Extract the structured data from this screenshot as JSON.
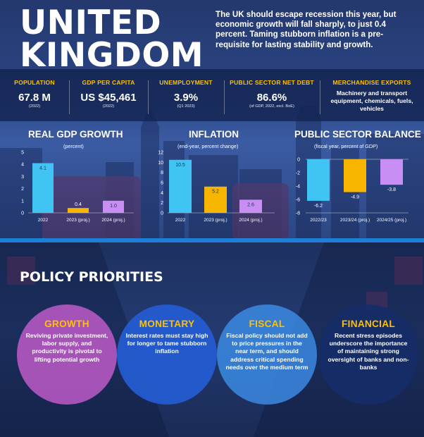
{
  "header": {
    "title_line1": "UNITED",
    "title_line2": "KINGDOM",
    "summary": "The UK should escape recession this year, but economic growth will fall sharply, to just 0.4 percent. Taming stubborn inflation is a pre-requisite for lasting stability and growth."
  },
  "stats": [
    {
      "label": "POPULATION",
      "value": "67.8 M",
      "note": "(2022)"
    },
    {
      "label": "GDP PER CAPITA",
      "value": "US $45,461",
      "note": "(2022)"
    },
    {
      "label": "UNEMPLOYMENT",
      "value": "3.9%",
      "note": "(Q1 2023)"
    },
    {
      "label": "PUBLIC SECTOR NET DEBT",
      "value": "86.6%",
      "note": "(of GDP, 2022, excl. BoE)"
    },
    {
      "label": "MERCHANDISE EXPORTS",
      "text": "Machinery and transport equipment, chemicals, fuels, vehicles"
    }
  ],
  "colors": {
    "accent_yellow": "#ffc000",
    "bar_blue": "#3fc4f4",
    "bar_yellow": "#f8b500",
    "bar_purple": "#c98ef3",
    "divider_blue": "#1e7fd6"
  },
  "chart_data": [
    {
      "type": "bar",
      "title": "REAL GDP GROWTH",
      "subtitle": "(percent)",
      "categories": [
        "2022",
        "2023 (proj.)",
        "2024 (proj.)"
      ],
      "values": [
        4.1,
        0.4,
        1.0
      ],
      "value_labels": [
        "4.1",
        "0.4",
        "1.0"
      ],
      "colors": [
        "#3fc4f4",
        "#f8b500",
        "#c98ef3"
      ],
      "yticks": [
        "0",
        "1",
        "2",
        "3",
        "4",
        "5"
      ],
      "ylim": [
        0,
        5
      ]
    },
    {
      "type": "bar",
      "title": "INFLATION",
      "subtitle": "(end-year, percent change)",
      "categories": [
        "2022",
        "2023 (proj.)",
        "2024 (proj.)"
      ],
      "values": [
        10.5,
        5.2,
        2.6
      ],
      "value_labels": [
        "10.5",
        "5.2",
        "2.6"
      ],
      "colors": [
        "#3fc4f4",
        "#f8b500",
        "#c98ef3"
      ],
      "yticks": [
        "0",
        "2",
        "4",
        "6",
        "8",
        "10",
        "12"
      ],
      "ylim": [
        0,
        12
      ]
    },
    {
      "type": "bar",
      "title": "PUBLIC SECTOR BALANCE",
      "subtitle": "(fiscal year, percent of GDP)",
      "categories": [
        "2022/23",
        "2023/24 (proj.)",
        "2024/25 (proj.)"
      ],
      "values": [
        -6.2,
        -4.9,
        -3.8
      ],
      "value_labels": [
        "-6.2",
        "-4.9",
        "-3.8"
      ],
      "colors": [
        "#3fc4f4",
        "#f8b500",
        "#c98ef3"
      ],
      "yticks": [
        "-8",
        "-6",
        "-4",
        "-2",
        "0"
      ],
      "ylim": [
        -8,
        0
      ]
    }
  ],
  "policy": {
    "title": "POLICY PRIORITIES",
    "items": [
      {
        "title": "GROWTH",
        "text": "Reviving private investment, labor supply, and productivity is pivotal to lifting potential growth"
      },
      {
        "title": "MONETARY",
        "text": "Interest rates must stay high for longer to tame stubborn inflation"
      },
      {
        "title": "FISCAL",
        "text": "Fiscal policy should not add to price pressures in the near term, and should address critical spending needs over the medium term"
      },
      {
        "title": "FINANCIAL",
        "text": "Recent stress episodes underscore the importance of maintaining strong oversight of banks and non-banks"
      }
    ]
  }
}
